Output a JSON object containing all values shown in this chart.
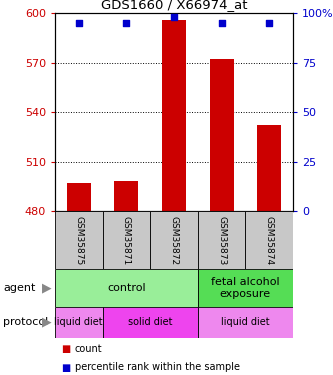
{
  "title": "GDS1660 / X66974_at",
  "samples": [
    "GSM35875",
    "GSM35871",
    "GSM35872",
    "GSM35873",
    "GSM35874"
  ],
  "counts": [
    497,
    498,
    596,
    572,
    532
  ],
  "percentile_ranks": [
    95,
    95,
    98,
    95,
    95
  ],
  "ylim_left": [
    480,
    600
  ],
  "ylim_right": [
    0,
    100
  ],
  "yticks_left": [
    480,
    510,
    540,
    570,
    600
  ],
  "yticks_right": [
    0,
    25,
    50,
    75,
    100
  ],
  "bar_color": "#cc0000",
  "dot_color": "#0000cc",
  "bar_baseline": 480,
  "agent_labels": [
    {
      "label": "control",
      "start": 0,
      "end": 3,
      "color": "#99ee99"
    },
    {
      "label": "fetal alcohol\nexposure",
      "start": 3,
      "end": 5,
      "color": "#55dd55"
    }
  ],
  "protocol_labels": [
    {
      "label": "liquid diet",
      "start": 0,
      "end": 1,
      "color": "#ee88ee"
    },
    {
      "label": "solid diet",
      "start": 1,
      "end": 3,
      "color": "#ee44ee"
    },
    {
      "label": "liquid diet",
      "start": 3,
      "end": 5,
      "color": "#ee88ee"
    }
  ],
  "legend_count_color": "#cc0000",
  "legend_pct_color": "#0000cc",
  "tick_color_left": "#cc0000",
  "tick_color_right": "#0000cc",
  "background_color": "#ffffff",
  "plot_bg_color": "#ffffff"
}
